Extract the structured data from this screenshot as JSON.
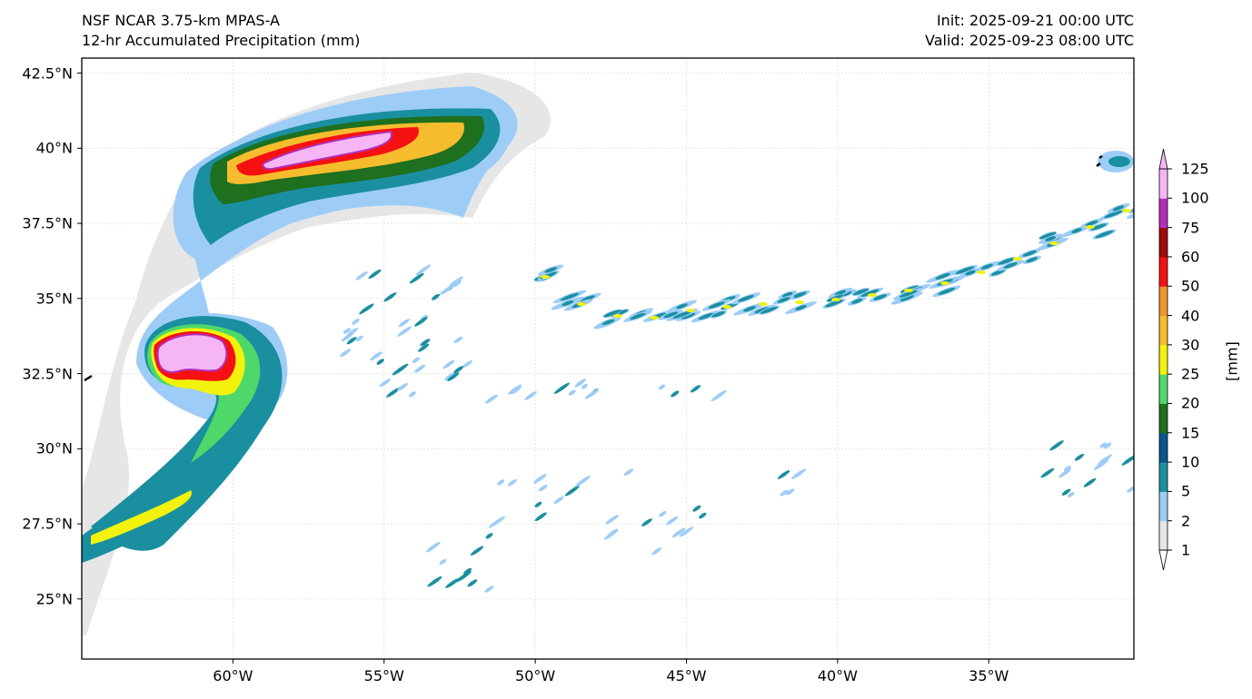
{
  "header": {
    "left_line1": "NSF NCAR 3.75-km MPAS-A",
    "left_line2": "12-hr Accumulated Precipitation (mm)",
    "right_line1": "Init: 2025-09-21 00:00 UTC",
    "right_line2": "Valid: 2025-09-23 08:00 UTC"
  },
  "map": {
    "lon_range": [
      -65,
      -30.2
    ],
    "lat_range": [
      23,
      43
    ],
    "lat_ticks": [
      {
        "value": 42.5,
        "label": "42.5°N"
      },
      {
        "value": 40,
        "label": "40°N"
      },
      {
        "value": 37.5,
        "label": "37.5°N"
      },
      {
        "value": 35,
        "label": "35°N"
      },
      {
        "value": 32.5,
        "label": "32.5°N"
      },
      {
        "value": 30,
        "label": "30°N"
      },
      {
        "value": 27.5,
        "label": "27.5°N"
      },
      {
        "value": 25,
        "label": "25°N"
      }
    ],
    "lon_ticks": [
      {
        "value": -60,
        "label": "60°W"
      },
      {
        "value": -55,
        "label": "55°W"
      },
      {
        "value": -50,
        "label": "50°W"
      },
      {
        "value": -45,
        "label": "45°W"
      },
      {
        "value": -40,
        "label": "40°W"
      },
      {
        "value": -35,
        "label": "35°W"
      }
    ],
    "gridlines": true
  },
  "colorbar": {
    "unit_label": "[mm]",
    "levels": [
      "1",
      "2",
      "5",
      "10",
      "15",
      "20",
      "25",
      "30",
      "40",
      "50",
      "60",
      "75",
      "100",
      "125"
    ],
    "colors": [
      "#e6e6e6",
      "#9dcdf7",
      "#1a8fa0",
      "#09558c",
      "#1e6f1e",
      "#4fd86a",
      "#f2f20c",
      "#f5bd2d",
      "#f0962d",
      "#f51111",
      "#a10a0a",
      "#b22fb8",
      "#f6b6f6"
    ],
    "extend": "both"
  }
}
